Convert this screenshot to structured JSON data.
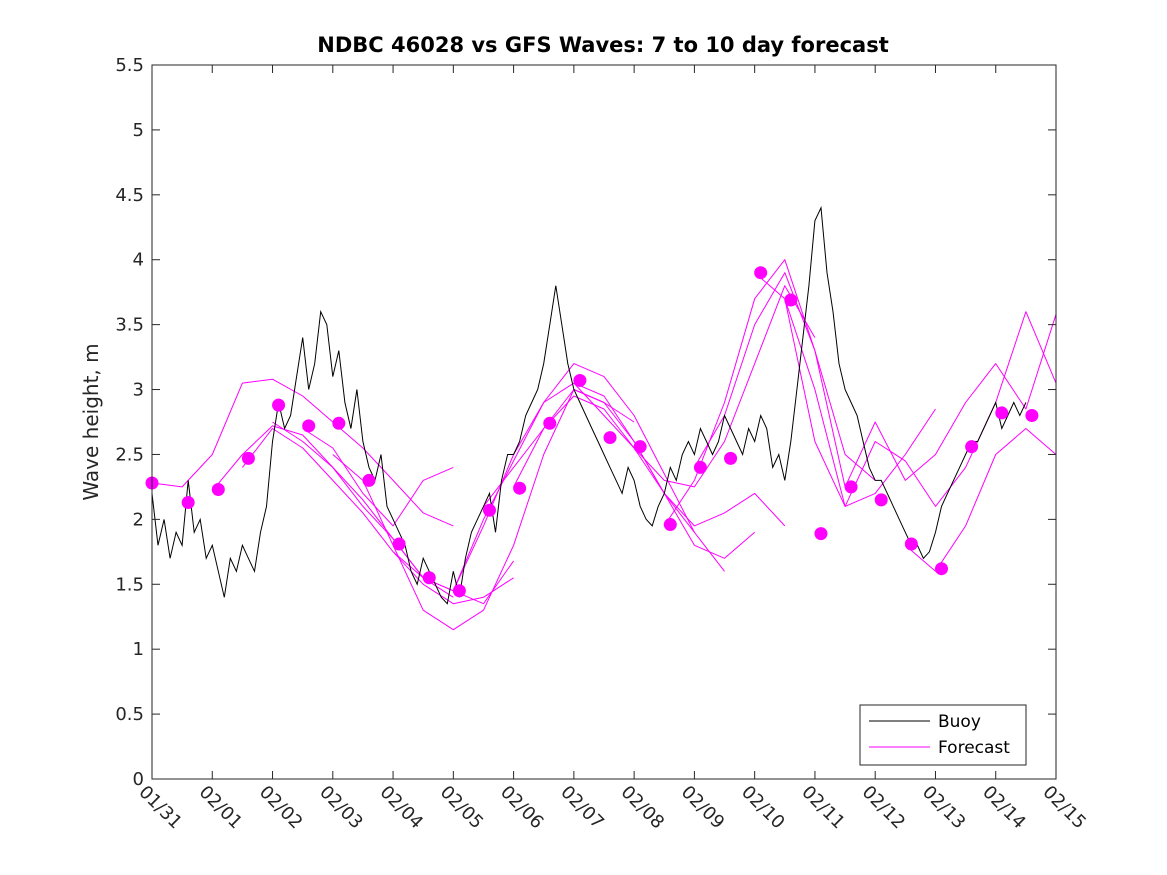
{
  "chart_data": {
    "type": "line",
    "title": "NDBC 46028 vs GFS Waves: 7 to 10 day forecast",
    "xlabel": "",
    "ylabel": "Wave height, m",
    "xlim": [
      0,
      15
    ],
    "ylim": [
      0,
      5.5
    ],
    "x_tick_labels": [
      "01/31",
      "02/01",
      "02/02",
      "02/03",
      "02/04",
      "02/05",
      "02/06",
      "02/07",
      "02/08",
      "02/09",
      "02/10",
      "02/11",
      "02/12",
      "02/13",
      "02/14",
      "02/15"
    ],
    "y_ticks": [
      0,
      0.5,
      1,
      1.5,
      2,
      2.5,
      3,
      3.5,
      4,
      4.5,
      5,
      5.5
    ],
    "y_tick_labels": [
      "0",
      "0.5",
      "1",
      "1.5",
      "2",
      "2.5",
      "3",
      "3.5",
      "4",
      "4.5",
      "5",
      "5.5"
    ],
    "legend": {
      "placement": "bottom-right",
      "entries": [
        {
          "label": "Buoy",
          "color": "#000000"
        },
        {
          "label": "Forecast",
          "color": "#ff00ff"
        }
      ]
    },
    "colors": {
      "buoy": "#000000",
      "forecast": "#ff00ff"
    },
    "buoy": {
      "name": "Buoy",
      "x": [
        0,
        0.1,
        0.2,
        0.3,
        0.4,
        0.5,
        0.6,
        0.7,
        0.8,
        0.9,
        1.0,
        1.1,
        1.2,
        1.3,
        1.4,
        1.5,
        1.6,
        1.7,
        1.8,
        1.9,
        2.0,
        2.1,
        2.2,
        2.3,
        2.4,
        2.5,
        2.6,
        2.7,
        2.8,
        2.9,
        3.0,
        3.1,
        3.2,
        3.3,
        3.4,
        3.5,
        3.6,
        3.7,
        3.8,
        3.9,
        4.0,
        4.1,
        4.2,
        4.3,
        4.4,
        4.5,
        4.6,
        4.7,
        4.8,
        4.9,
        5.0,
        5.1,
        5.2,
        5.3,
        5.4,
        5.5,
        5.6,
        5.7,
        5.8,
        5.9,
        6.0,
        6.1,
        6.2,
        6.3,
        6.4,
        6.5,
        6.6,
        6.7,
        6.8,
        6.9,
        7.0,
        7.1,
        7.2,
        7.3,
        7.4,
        7.5,
        7.6,
        7.7,
        7.8,
        7.9,
        8.0,
        8.1,
        8.2,
        8.3,
        8.4,
        8.5,
        8.6,
        8.7,
        8.8,
        8.9,
        9.0,
        9.1,
        9.2,
        9.3,
        9.4,
        9.5,
        9.6,
        9.7,
        9.8,
        9.9,
        10.0,
        10.1,
        10.2,
        10.3,
        10.4,
        10.5,
        10.6,
        10.7,
        10.8,
        10.9,
        11.0,
        11.1,
        11.2,
        11.3,
        11.4,
        11.5,
        11.6,
        11.7,
        11.8,
        11.9,
        12.0,
        12.1,
        12.2,
        12.3,
        12.4,
        12.5,
        12.6,
        12.7,
        12.8,
        12.9,
        13.0,
        13.1,
        13.2,
        13.3,
        13.4,
        13.5,
        13.6,
        13.7,
        13.8,
        13.9,
        14.0,
        14.1,
        14.2,
        14.3,
        14.4,
        14.5
      ],
      "values": [
        2.2,
        1.8,
        2.0,
        1.7,
        1.9,
        1.8,
        2.3,
        1.9,
        2.0,
        1.7,
        1.8,
        1.6,
        1.4,
        1.7,
        1.6,
        1.8,
        1.7,
        1.6,
        1.9,
        2.1,
        2.6,
        2.9,
        2.7,
        2.8,
        3.1,
        3.4,
        3.0,
        3.2,
        3.6,
        3.5,
        3.1,
        3.3,
        2.9,
        2.7,
        3.0,
        2.6,
        2.4,
        2.3,
        2.5,
        2.1,
        2.0,
        1.9,
        1.8,
        1.6,
        1.5,
        1.7,
        1.6,
        1.5,
        1.4,
        1.35,
        1.6,
        1.4,
        1.7,
        1.9,
        2.0,
        2.1,
        2.2,
        1.9,
        2.3,
        2.5,
        2.5,
        2.6,
        2.8,
        2.9,
        3.0,
        3.2,
        3.5,
        3.8,
        3.5,
        3.2,
        3.0,
        2.9,
        2.8,
        2.7,
        2.6,
        2.5,
        2.4,
        2.3,
        2.2,
        2.4,
        2.3,
        2.1,
        2.0,
        1.95,
        2.1,
        2.2,
        2.4,
        2.3,
        2.5,
        2.6,
        2.5,
        2.7,
        2.6,
        2.5,
        2.6,
        2.8,
        2.7,
        2.6,
        2.5,
        2.7,
        2.6,
        2.8,
        2.7,
        2.4,
        2.5,
        2.3,
        2.6,
        3.0,
        3.4,
        3.8,
        4.3,
        4.4,
        3.9,
        3.6,
        3.2,
        3.0,
        2.9,
        2.8,
        2.6,
        2.4,
        2.3,
        2.3,
        2.2,
        2.1,
        2.0,
        1.9,
        1.8,
        1.8,
        1.7,
        1.75,
        1.9,
        2.1,
        2.2,
        2.3,
        2.4,
        2.5,
        2.6,
        2.6,
        2.7,
        2.8,
        2.9,
        2.7,
        2.8,
        2.9,
        2.8,
        2.9
      ]
    },
    "forecast_runs": [
      {
        "x": [
          0,
          0.5,
          1.0,
          1.5,
          2.0,
          2.5,
          3.0,
          3.5,
          4.0,
          4.5,
          5.0
        ],
        "values": [
          2.28,
          2.25,
          2.5,
          3.05,
          3.08,
          2.95,
          2.75,
          2.55,
          2.3,
          2.05,
          1.95
        ]
      },
      {
        "x": [
          1.0,
          1.5,
          2.0,
          2.5,
          3.0,
          3.5,
          4.0,
          4.5,
          5.0
        ],
        "values": [
          2.22,
          2.5,
          2.72,
          2.65,
          2.4,
          2.1,
          1.85,
          1.55,
          1.4
        ]
      },
      {
        "x": [
          1.5,
          2.0,
          2.5,
          3.0,
          3.5,
          4.0,
          4.5,
          5.0,
          5.5,
          6.0
        ],
        "values": [
          2.4,
          2.7,
          2.55,
          2.3,
          2.05,
          1.75,
          1.5,
          1.35,
          1.4,
          1.55
        ]
      },
      {
        "x": [
          2.0,
          2.5,
          3.0,
          3.5,
          4.0,
          4.5,
          5.0,
          5.5,
          6.0
        ],
        "values": [
          2.75,
          2.6,
          2.4,
          2.15,
          1.85,
          1.55,
          1.45,
          1.35,
          1.68
        ]
      },
      {
        "x": [
          2.5,
          3.0,
          3.5,
          4.0,
          4.5,
          5.0
        ],
        "values": [
          2.7,
          2.55,
          2.2,
          1.95,
          2.3,
          2.4
        ]
      },
      {
        "x": [
          3.0,
          3.5,
          4.0,
          4.5,
          5.0,
          5.5,
          6.0,
          6.5,
          7.0,
          7.5,
          8.0
        ],
        "values": [
          2.5,
          2.3,
          1.8,
          1.3,
          1.15,
          1.3,
          1.8,
          2.5,
          3.0,
          2.9,
          2.75
        ]
      },
      {
        "x": [
          4.0,
          4.5,
          5.0,
          5.5,
          6.0,
          6.5,
          7.0,
          7.5,
          8.0,
          8.5,
          9.0
        ],
        "values": [
          1.75,
          1.55,
          1.45,
          1.95,
          2.5,
          2.9,
          3.05,
          2.95,
          2.6,
          2.2,
          1.9
        ]
      },
      {
        "x": [
          5.0,
          5.5,
          6.0,
          6.5,
          7.0,
          7.5,
          8.0,
          8.5,
          9.0,
          9.5
        ],
        "values": [
          1.45,
          2.0,
          2.45,
          2.9,
          3.2,
          3.1,
          2.8,
          2.35,
          1.9,
          1.6
        ]
      },
      {
        "x": [
          5.5,
          6.0,
          6.5,
          7.0,
          7.5,
          8.0,
          8.5,
          9.0,
          9.5,
          10.0
        ],
        "values": [
          2.1,
          2.4,
          2.7,
          2.95,
          2.85,
          2.55,
          2.2,
          1.8,
          1.7,
          1.9
        ]
      },
      {
        "x": [
          6.0,
          6.5,
          7.0,
          7.5,
          8.0,
          8.5,
          9.0,
          9.5,
          10.0,
          10.5
        ],
        "values": [
          2.25,
          2.7,
          3.0,
          2.9,
          2.6,
          2.2,
          1.95,
          2.05,
          2.2,
          1.95
        ]
      },
      {
        "x": [
          7.0,
          7.5,
          8.0,
          8.5,
          9.0,
          9.5,
          10.0,
          10.5,
          11.0
        ],
        "values": [
          3.05,
          2.8,
          2.55,
          2.3,
          2.25,
          2.6,
          3.2,
          3.8,
          3.4
        ]
      },
      {
        "x": [
          8.5,
          9.0,
          9.5,
          10.0,
          10.5,
          11.0,
          11.5
        ],
        "values": [
          1.95,
          2.3,
          2.9,
          3.7,
          4.0,
          3.3,
          2.25
        ]
      },
      {
        "x": [
          9.0,
          9.5,
          10.0,
          10.5,
          11.0,
          11.5,
          12.0
        ],
        "values": [
          2.4,
          2.8,
          3.5,
          3.9,
          3.3,
          2.5,
          2.3
        ]
      },
      {
        "x": [
          10.0,
          10.5,
          11.0,
          11.5,
          12.0,
          12.5,
          13.0
        ],
        "values": [
          3.9,
          3.7,
          2.6,
          2.1,
          2.2,
          2.5,
          2.85
        ]
      },
      {
        "x": [
          10.5,
          11.0,
          11.5,
          12.0,
          12.5,
          13.0,
          13.5,
          14.0,
          14.5,
          15.0
        ],
        "values": [
          3.7,
          3.0,
          2.1,
          2.6,
          2.45,
          2.1,
          2.4,
          2.9,
          3.6,
          3.05
        ]
      },
      {
        "x": [
          11.5,
          12.0,
          12.5,
          13.0,
          13.5,
          14.0,
          14.5,
          15.0
        ],
        "values": [
          2.25,
          2.75,
          2.3,
          2.5,
          2.9,
          3.2,
          2.85,
          3.58
        ]
      },
      {
        "x": [
          12.5,
          13.0,
          13.5,
          14.0,
          14.5,
          15.0
        ],
        "values": [
          1.8,
          1.6,
          1.95,
          2.5,
          2.7,
          2.5
        ]
      }
    ],
    "forecast_markers": {
      "x": [
        0.0,
        0.6,
        1.1,
        1.6,
        2.1,
        2.6,
        3.1,
        3.6,
        4.1,
        4.6,
        5.1,
        5.6,
        6.1,
        6.6,
        7.1,
        7.6,
        8.1,
        8.6,
        9.1,
        9.6,
        10.1,
        10.6,
        11.1,
        11.6,
        12.1,
        12.6,
        13.1,
        13.6,
        14.1,
        14.6
      ],
      "values": [
        2.28,
        2.13,
        2.23,
        2.47,
        2.88,
        2.72,
        2.74,
        2.3,
        1.81,
        1.55,
        1.45,
        2.07,
        2.24,
        2.74,
        3.07,
        2.63,
        2.56,
        1.96,
        2.4,
        2.47,
        3.9,
        3.69,
        1.89,
        2.25,
        2.15,
        1.81,
        1.62,
        2.56,
        2.82,
        2.8
      ]
    }
  }
}
